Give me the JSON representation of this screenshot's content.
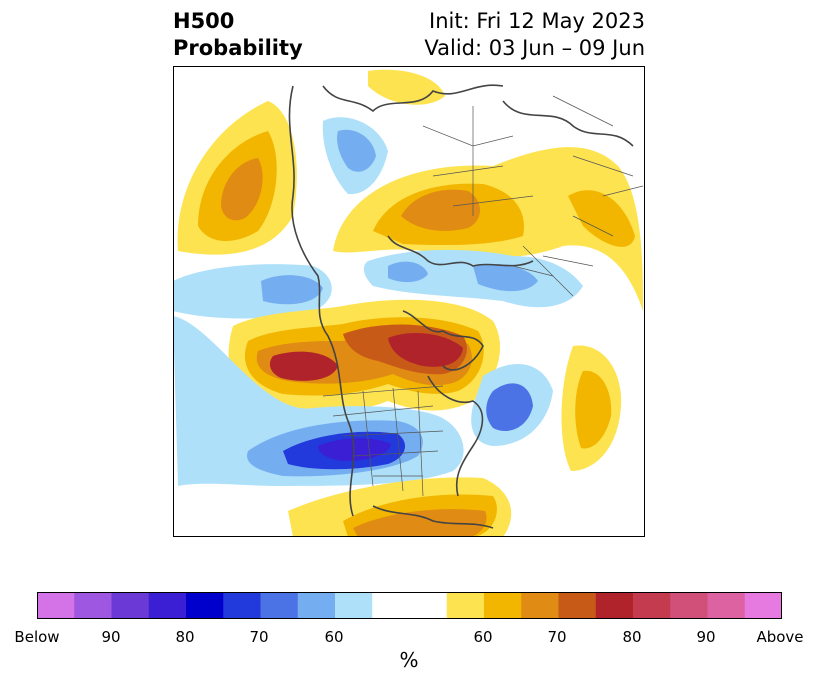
{
  "title": {
    "left_line1": "H500",
    "left_line2": "Probability",
    "right_line1": "Init: Fri 12 May 2023",
    "right_line2": "Valid: 03 Jun – 09 Jun"
  },
  "map": {
    "projection": "polar stereographic (Northern Hemisphere)",
    "field": "500 hPa height tercile probability",
    "colors": {
      "below": [
        "#d473e8",
        "#9e57e0",
        "#6b3ad6",
        "#3b1fd4",
        "#0000cc",
        "#2239dc",
        "#4b73e6",
        "#75aef0",
        "#aee0fa"
      ],
      "neutral": "#ffffff",
      "above": [
        "#fde34f",
        "#f2b600",
        "#e08b13",
        "#c85a18",
        "#b0232a",
        "#c43a4e",
        "#d15079",
        "#dc62a2",
        "#e67ae0"
      ]
    }
  },
  "colorbar": {
    "labels": [
      "Below",
      "90",
      "80",
      "70",
      "60",
      "60",
      "70",
      "80",
      "90",
      "Above"
    ],
    "unit": "%"
  }
}
